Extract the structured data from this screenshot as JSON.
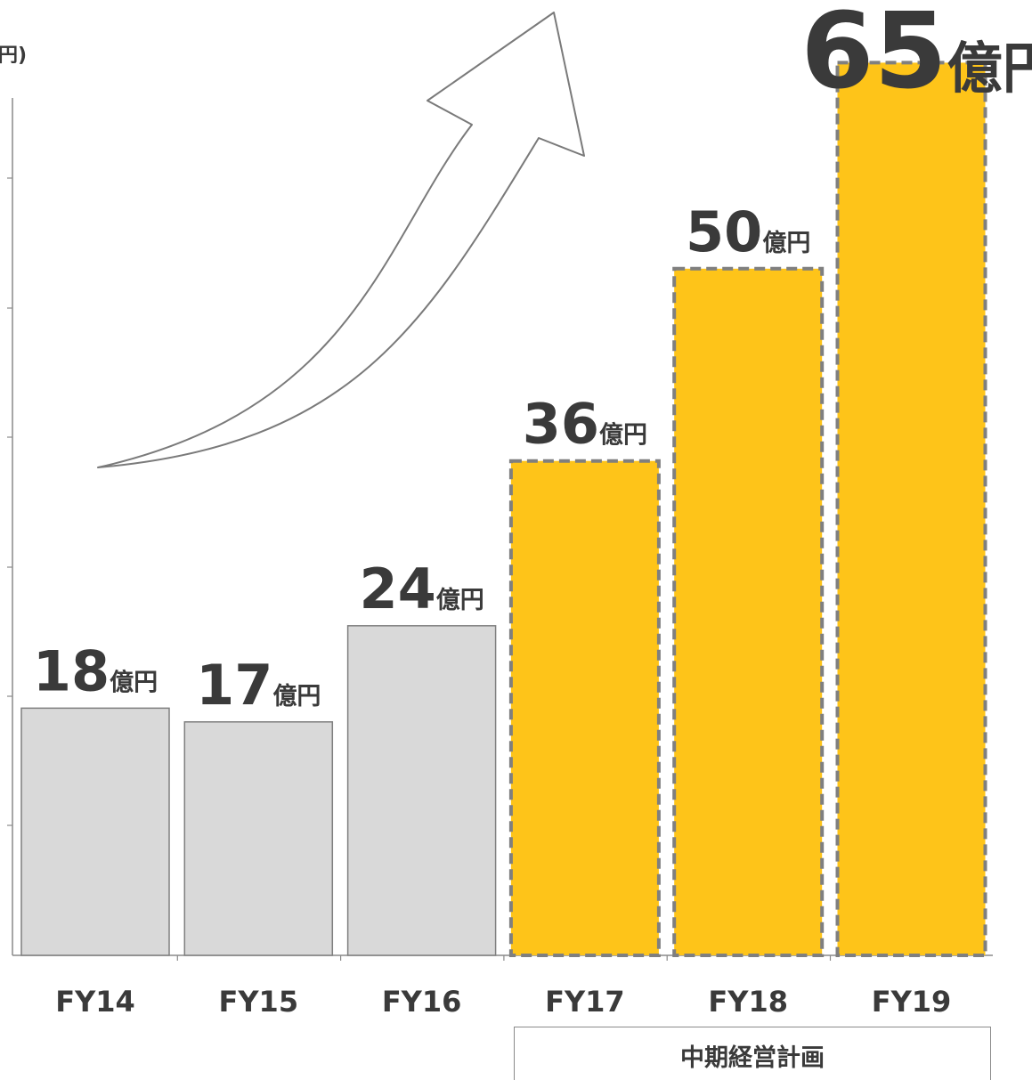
{
  "chart_data": {
    "type": "bar",
    "ylabel": "円)",
    "categories": [
      "FY14",
      "FY15",
      "FY16",
      "FY17",
      "FY18",
      "FY19"
    ],
    "values": [
      18,
      17,
      24,
      36,
      50,
      65
    ],
    "bar_labels": [
      {
        "number": "18",
        "unit": "億円"
      },
      {
        "number": "17",
        "unit": "億円"
      },
      {
        "number": "24",
        "unit": "億円"
      },
      {
        "number": "36",
        "unit": "億円"
      },
      {
        "number": "50",
        "unit": "億円"
      },
      {
        "number": "65",
        "unit": "億円"
      }
    ],
    "planned_from_index": 3,
    "ylim": [
      0,
      66
    ],
    "grid": false,
    "annotations": [
      "中期経営計画"
    ]
  },
  "plan_group": {
    "label": "中期経営計画",
    "categories": [
      "FY17",
      "FY18",
      "FY19"
    ]
  },
  "colors": {
    "actual_fill": "#d9d9d9",
    "actual_stroke": "#7f7f7f",
    "planned_fill": "#fec419",
    "planned_stroke": "#7f7f7f",
    "text": "#3a3a3a"
  },
  "icons": [
    "growth-arrow-icon"
  ]
}
